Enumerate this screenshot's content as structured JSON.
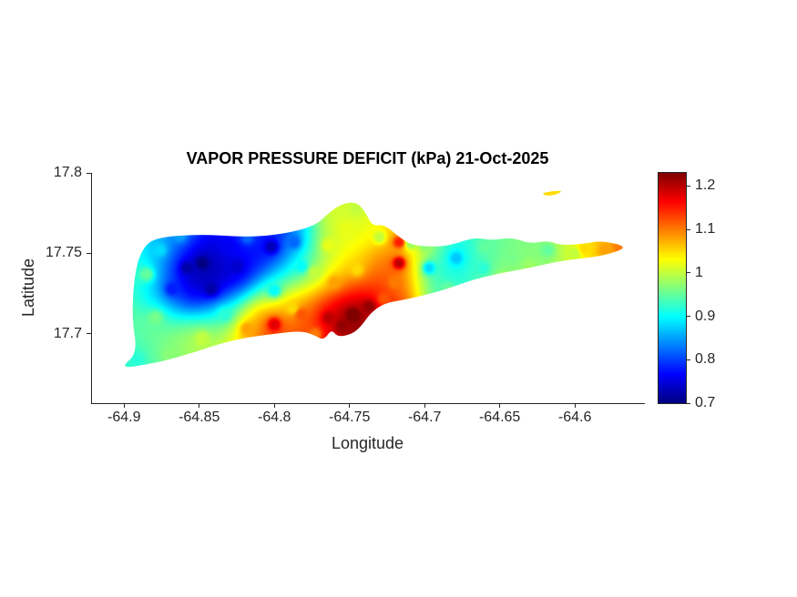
{
  "chart_data": {
    "type": "heatmap",
    "title": "VAPOR PRESSURE DEFICIT (kPa) 21-Oct-2025",
    "xlabel": "Longitude",
    "ylabel": "Latitude",
    "units": "kPa",
    "background_color": "#ffffff",
    "colormap": "jet",
    "clim": [
      0.7,
      1.23
    ],
    "xlim": [
      -64.922,
      -64.554
    ],
    "ylim": [
      17.657,
      17.8
    ],
    "grid": false,
    "legend": "colorbar-right",
    "xticks": [
      -64.9,
      -64.85,
      -64.8,
      -64.75,
      -64.7,
      -64.65,
      -64.6
    ],
    "xtick_labels": [
      "-64.9",
      "-64.85",
      "-64.8",
      "-64.75",
      "-64.7",
      "-64.65",
      "-64.6"
    ],
    "yticks": [
      17.7,
      17.75,
      17.8
    ],
    "ytick_labels": [
      "17.7",
      "17.75",
      "17.8"
    ],
    "colorbar_ticks": [
      0.7,
      0.8,
      0.9,
      1,
      1.1,
      1.2
    ],
    "colorbar_tick_labels": [
      "0.7",
      "0.8",
      "0.9",
      "1",
      "1.1",
      "1.2"
    ],
    "island_outline": [
      [
        -64.903,
        17.6785
      ],
      [
        -64.885,
        17.681
      ],
      [
        -64.87,
        17.684
      ],
      [
        -64.852,
        17.689
      ],
      [
        -64.836,
        17.694
      ],
      [
        -64.818,
        17.698
      ],
      [
        -64.8,
        17.7
      ],
      [
        -64.782,
        17.702
      ],
      [
        -64.773,
        17.699
      ],
      [
        -64.767,
        17.696
      ],
      [
        -64.762,
        17.703
      ],
      [
        -64.758,
        17.698
      ],
      [
        -64.748,
        17.7
      ],
      [
        -64.742,
        17.705
      ],
      [
        -64.736,
        17.713
      ],
      [
        -64.727,
        17.719
      ],
      [
        -64.715,
        17.721
      ],
      [
        -64.7,
        17.724
      ],
      [
        -64.685,
        17.728
      ],
      [
        -64.667,
        17.734
      ],
      [
        -64.648,
        17.738
      ],
      [
        -64.63,
        17.741
      ],
      [
        -64.612,
        17.745
      ],
      [
        -64.594,
        17.747
      ],
      [
        -64.579,
        17.749
      ],
      [
        -64.564,
        17.754
      ],
      [
        -64.582,
        17.758
      ],
      [
        -64.594,
        17.756
      ],
      [
        -64.609,
        17.755
      ],
      [
        -64.618,
        17.758
      ],
      [
        -64.63,
        17.756
      ],
      [
        -64.642,
        17.76
      ],
      [
        -64.655,
        17.758
      ],
      [
        -64.667,
        17.76
      ],
      [
        -64.679,
        17.756
      ],
      [
        -64.691,
        17.754
      ],
      [
        -64.709,
        17.755
      ],
      [
        -64.718,
        17.761
      ],
      [
        -64.727,
        17.768
      ],
      [
        -64.735,
        17.767
      ],
      [
        -64.739,
        17.775
      ],
      [
        -64.745,
        17.782
      ],
      [
        -64.755,
        17.781
      ],
      [
        -64.764,
        17.775
      ],
      [
        -64.773,
        17.767
      ],
      [
        -64.794,
        17.762
      ],
      [
        -64.818,
        17.76
      ],
      [
        -64.848,
        17.762
      ],
      [
        -64.879,
        17.76
      ],
      [
        -64.888,
        17.753
      ],
      [
        -64.893,
        17.738
      ],
      [
        -64.895,
        17.71
      ],
      [
        -64.891,
        17.688
      ]
    ],
    "islets": [
      [
        [
          -64.622,
          17.7875
        ],
        [
          -64.612,
          17.789
        ],
        [
          -64.608,
          17.7885
        ],
        [
          -64.614,
          17.786
        ],
        [
          -64.62,
          17.786
        ]
      ]
    ],
    "samples": [
      [
        -64.858,
        17.741,
        0.72
      ],
      [
        -64.848,
        17.744,
        0.7
      ],
      [
        -64.842,
        17.728,
        0.72
      ],
      [
        -64.83,
        17.754,
        0.76
      ],
      [
        -64.825,
        17.742,
        0.74
      ],
      [
        -64.802,
        17.754,
        0.73
      ],
      [
        -64.787,
        17.757,
        0.82
      ],
      [
        -64.868,
        17.728,
        0.78
      ],
      [
        -64.818,
        17.76,
        0.82
      ],
      [
        -64.876,
        17.752,
        0.88
      ],
      [
        -64.863,
        17.761,
        0.85
      ],
      [
        -64.885,
        17.737,
        0.95
      ],
      [
        -64.879,
        17.71,
        0.96
      ],
      [
        -64.891,
        17.684,
        0.92
      ],
      [
        -64.833,
        17.712,
        0.92
      ],
      [
        -64.8,
        17.727,
        0.9
      ],
      [
        -64.782,
        17.742,
        0.9
      ],
      [
        -64.87,
        17.687,
        0.97
      ],
      [
        -64.848,
        17.697,
        1.0
      ],
      [
        -64.818,
        17.703,
        1.08
      ],
      [
        -64.8,
        17.706,
        1.18
      ],
      [
        -64.788,
        17.716,
        1.05
      ],
      [
        -64.782,
        17.712,
        1.12
      ],
      [
        -64.773,
        17.7,
        1.1
      ],
      [
        -64.764,
        17.71,
        1.2
      ],
      [
        -64.755,
        17.705,
        1.22
      ],
      [
        -64.748,
        17.712,
        1.25
      ],
      [
        -64.737,
        17.717,
        1.22
      ],
      [
        -64.727,
        17.722,
        1.12
      ],
      [
        -64.773,
        17.738,
        1.0
      ],
      [
        -64.76,
        17.732,
        1.08
      ],
      [
        -64.745,
        17.74,
        1.05
      ],
      [
        -64.764,
        17.755,
        1.02
      ],
      [
        -64.752,
        17.765,
        1.02
      ],
      [
        -64.745,
        17.778,
        1.0
      ],
      [
        -64.73,
        17.76,
        1.0
      ],
      [
        -64.717,
        17.744,
        1.2
      ],
      [
        -64.717,
        17.757,
        1.15
      ],
      [
        -64.72,
        17.732,
        1.1
      ],
      [
        -64.697,
        17.741,
        0.88
      ],
      [
        -64.679,
        17.747,
        0.87
      ],
      [
        -64.661,
        17.741,
        0.92
      ],
      [
        -64.7,
        17.755,
        0.97
      ],
      [
        -64.709,
        17.756,
        0.98
      ],
      [
        -64.685,
        17.728,
        0.95
      ],
      [
        -64.66,
        17.754,
        0.95
      ],
      [
        -64.648,
        17.734,
        1.0
      ],
      [
        -64.642,
        17.747,
        0.96
      ],
      [
        -64.63,
        17.742,
        0.98
      ],
      [
        -64.618,
        17.752,
        0.95
      ],
      [
        -64.6,
        17.75,
        1.0
      ],
      [
        -64.594,
        17.753,
        1.05
      ],
      [
        -64.58,
        17.752,
        1.08
      ],
      [
        -64.57,
        17.754,
        1.1
      ],
      [
        -64.616,
        17.788,
        1.05
      ]
    ]
  }
}
